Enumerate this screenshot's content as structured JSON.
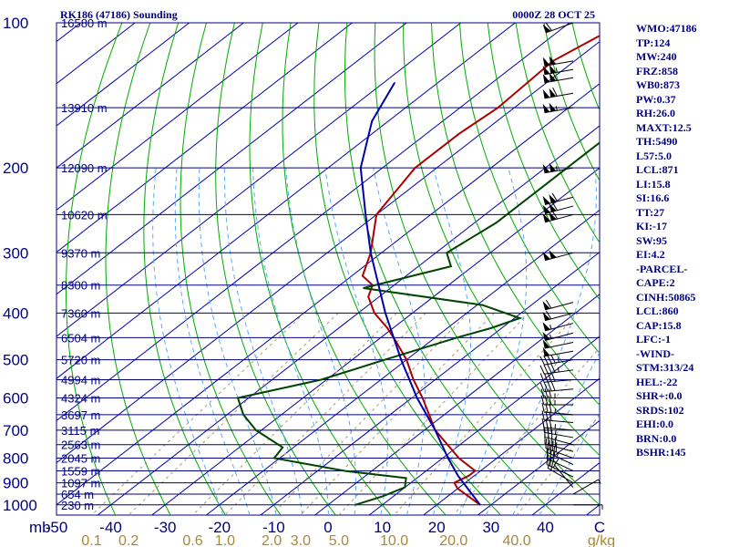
{
  "chart_data": {
    "type": "skew-t",
    "title": "RK186 (47186) Sounding",
    "time_label": "0000Z 28 OCT 25",
    "y_unit_label": "mb",
    "mixing_unit_label": "g/kg",
    "pressure_ticks": [
      100,
      200,
      300,
      400,
      500,
      600,
      700,
      800,
      900,
      1000
    ],
    "temperature_ticks": [
      -50,
      -40,
      -30,
      -20,
      -10,
      0,
      10,
      20,
      30,
      40,
      "C"
    ],
    "mixing_ratio_labels": [
      "0.1",
      "0.2",
      "0.6",
      "1.0",
      "2.0",
      "3.0",
      "5.0",
      "10.0",
      "20.0",
      "40.0"
    ],
    "height_levels": [
      {
        "p": 100,
        "label": "16580 m"
      },
      {
        "p": 150,
        "label": "13910 m"
      },
      {
        "p": 200,
        "label": "12090 m"
      },
      {
        "p": 250,
        "label": "10620 m"
      },
      {
        "p": 300,
        "label": "9370 m"
      },
      {
        "p": 350,
        "label": "8300 m"
      },
      {
        "p": 400,
        "label": "7360 m"
      },
      {
        "p": 450,
        "label": "6504 m"
      },
      {
        "p": 500,
        "label": "5720 m"
      },
      {
        "p": 550,
        "label": "4994 m"
      },
      {
        "p": 600,
        "label": "4324 m"
      },
      {
        "p": 650,
        "label": "3697 m"
      },
      {
        "p": 700,
        "label": "3115 m"
      },
      {
        "p": 750,
        "label": "2563 m"
      },
      {
        "p": 800,
        "label": "2045 m"
      },
      {
        "p": 850,
        "label": "1559 m"
      },
      {
        "p": 900,
        "label": "1097 m"
      },
      {
        "p": 950,
        "label": "654 m"
      },
      {
        "p": 1000,
        "label": "230 m"
      }
    ],
    "series": [
      {
        "name": "temperature",
        "color": "#aa0000",
        "points": [
          [
            1000,
            28
          ],
          [
            925,
            20
          ],
          [
            900,
            18
          ],
          [
            870,
            19
          ],
          [
            850,
            19
          ],
          [
            800,
            13
          ],
          [
            700,
            2
          ],
          [
            600,
            -8
          ],
          [
            550,
            -14
          ],
          [
            500,
            -20
          ],
          [
            460,
            -26
          ],
          [
            430,
            -31
          ],
          [
            400,
            -37
          ],
          [
            370,
            -42
          ],
          [
            350,
            -44
          ],
          [
            335,
            -48
          ],
          [
            300,
            -52
          ],
          [
            250,
            -60
          ],
          [
            200,
            -64
          ],
          [
            170,
            -64
          ],
          [
            150,
            -63
          ],
          [
            120,
            -64
          ],
          [
            100,
            -60
          ]
        ]
      },
      {
        "name": "dewpoint",
        "color": "#004400",
        "points": [
          [
            1000,
            5
          ],
          [
            960,
            8
          ],
          [
            920,
            10
          ],
          [
            880,
            8
          ],
          [
            850,
            -5
          ],
          [
            800,
            -21
          ],
          [
            760,
            -22
          ],
          [
            700,
            -31
          ],
          [
            650,
            -37
          ],
          [
            600,
            -42
          ],
          [
            550,
            -31
          ],
          [
            500,
            -24
          ],
          [
            450,
            -16
          ],
          [
            430,
            -12
          ],
          [
            410,
            -9
          ],
          [
            385,
            -19
          ],
          [
            355,
            -45
          ],
          [
            320,
            -34
          ],
          [
            300,
            -38
          ],
          [
            260,
            -36
          ],
          [
            220,
            -36
          ],
          [
            150,
            -36
          ],
          [
            120,
            -36
          ],
          [
            100,
            -40
          ]
        ]
      },
      {
        "name": "parcel",
        "color": "#0000aa",
        "points": [
          [
            1000,
            28
          ],
          [
            870,
            17
          ],
          [
            800,
            11
          ],
          [
            700,
            2
          ],
          [
            600,
            -9
          ],
          [
            500,
            -21
          ],
          [
            400,
            -35
          ],
          [
            300,
            -52
          ],
          [
            250,
            -62
          ],
          [
            200,
            -74
          ],
          [
            160,
            -83
          ],
          [
            133,
            -88
          ]
        ]
      }
    ],
    "wind_barbs": [
      {
        "p": 1000,
        "dir": 90,
        "spd": 5
      },
      {
        "p": 950,
        "dir": 60,
        "spd": 5
      },
      {
        "p": 920,
        "dir": 320,
        "spd": 10
      },
      {
        "p": 900,
        "dir": 300,
        "spd": 20
      },
      {
        "p": 875,
        "dir": 295,
        "spd": 25
      },
      {
        "p": 850,
        "dir": 295,
        "spd": 30
      },
      {
        "p": 825,
        "dir": 295,
        "spd": 35
      },
      {
        "p": 800,
        "dir": 290,
        "spd": 40
      },
      {
        "p": 775,
        "dir": 285,
        "spd": 40
      },
      {
        "p": 750,
        "dir": 285,
        "spd": 35
      },
      {
        "p": 725,
        "dir": 280,
        "spd": 35
      },
      {
        "p": 700,
        "dir": 275,
        "spd": 35
      },
      {
        "p": 675,
        "dir": 275,
        "spd": 30
      },
      {
        "p": 650,
        "dir": 275,
        "spd": 35
      },
      {
        "p": 620,
        "dir": 270,
        "spd": 35
      },
      {
        "p": 600,
        "dir": 270,
        "spd": 35
      },
      {
        "p": 575,
        "dir": 265,
        "spd": 40
      },
      {
        "p": 550,
        "dir": 265,
        "spd": 40
      },
      {
        "p": 525,
        "dir": 262,
        "spd": 45
      },
      {
        "p": 500,
        "dir": 260,
        "spd": 45
      },
      {
        "p": 480,
        "dir": 260,
        "spd": 50
      },
      {
        "p": 460,
        "dir": 258,
        "spd": 50
      },
      {
        "p": 440,
        "dir": 255,
        "spd": 55
      },
      {
        "p": 420,
        "dir": 255,
        "spd": 55
      },
      {
        "p": 400,
        "dir": 255,
        "spd": 60
      },
      {
        "p": 380,
        "dir": 255,
        "spd": 60
      },
      {
        "p": 300,
        "dir": 255,
        "spd": 100
      },
      {
        "p": 250,
        "dir": 255,
        "spd": 110
      },
      {
        "p": 240,
        "dir": 255,
        "spd": 110
      },
      {
        "p": 230,
        "dir": 255,
        "spd": 110
      },
      {
        "p": 200,
        "dir": 260,
        "spd": 105
      },
      {
        "p": 150,
        "dir": 260,
        "spd": 105
      },
      {
        "p": 140,
        "dir": 260,
        "spd": 110
      },
      {
        "p": 130,
        "dir": 260,
        "spd": 110
      },
      {
        "p": 125,
        "dir": 260,
        "spd": 105
      },
      {
        "p": 120,
        "dir": 260,
        "spd": 100
      },
      {
        "p": 100,
        "dir": 250,
        "spd": 60
      }
    ],
    "colors": {
      "isobar": "#00007f",
      "isotherm": "#0000aa",
      "dry_adiabat": "#00aa00",
      "moist_adiabat": "#55aaff",
      "mixing_ratio": "#aa9966",
      "wind_barb": "#000000",
      "frame": "#000080",
      "temp_tick": "#000080",
      "mixing_label": "#aa8833"
    },
    "x_range_at_1000mb": [
      -50,
      50
    ],
    "p_range": [
      100,
      1050
    ]
  },
  "stats_panel": [
    "WMO:47186",
    "TP:124",
    "MW:240",
    "FRZ:858",
    "WB0:873",
    "PW:0.37",
    "RH:26.0",
    "MAXT:12.5",
    "TH:5490",
    "L57:5.0",
    "LCL:871",
    "LI:15.8",
    "SI:16.6",
    "TT:27",
    "KI:-17",
    "SW:95",
    "EI:4.2",
    "-PARCEL-",
    "CAPE:2",
    "CINH:50865",
    "LCL:860",
    "CAP:15.8",
    "LFC:-1",
    "-WIND-",
    "STM:313/24",
    "HEL:-22",
    "SHR+:0.0",
    "SRDS:102",
    "EHI:0.0",
    "BRN:0.0",
    "BSHR:145"
  ]
}
